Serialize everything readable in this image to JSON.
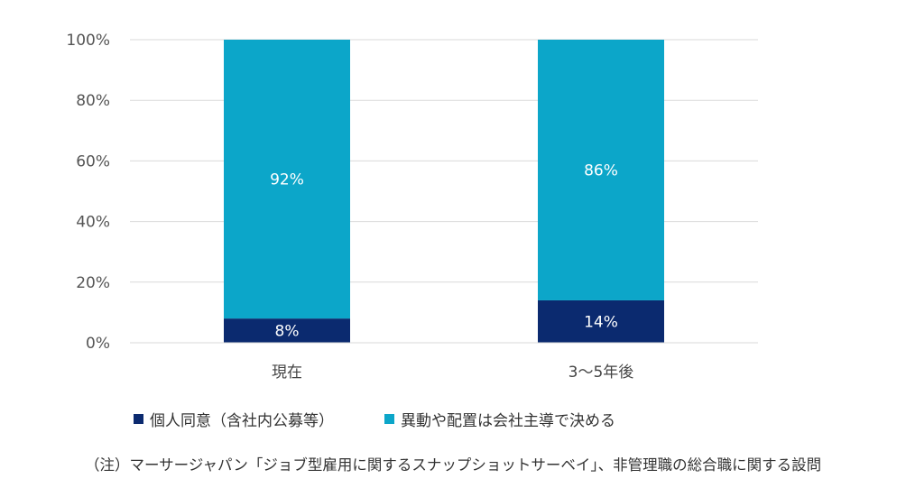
{
  "chart_data": {
    "type": "bar",
    "stacked": true,
    "categories": [
      "現在",
      "3～5年後"
    ],
    "series": [
      {
        "name": "個人同意（含社内公募等）",
        "values": [
          8,
          14
        ],
        "labels": [
          "8%",
          "14%"
        ],
        "color": "#0b2a6f"
      },
      {
        "name": "異動や配置は会社主導で決める",
        "values": [
          92,
          86
        ],
        "labels": [
          "92%",
          "86%"
        ],
        "color": "#0ca6c9"
      }
    ],
    "ylim": [
      0,
      100
    ],
    "yticks": [
      "0%",
      "20%",
      "40%",
      "60%",
      "80%",
      "100%"
    ],
    "grid": true,
    "legend": "bottom"
  },
  "note": "（注）マーサージャパン「ジョブ型雇用に関するスナップショットサーベイ」、非管理職の総合職に関する設問"
}
